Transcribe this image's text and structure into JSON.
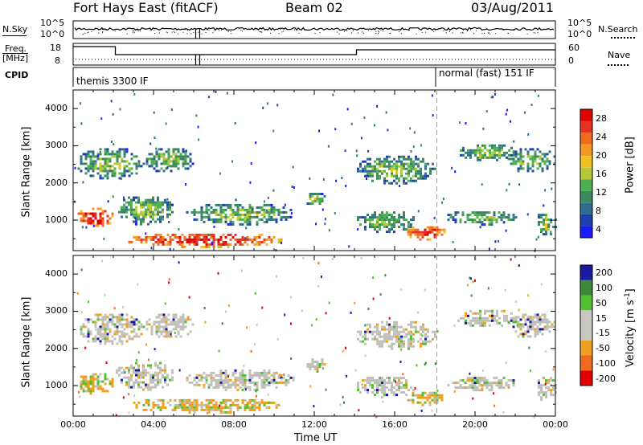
{
  "header": {
    "station": "Fort Hays East (fitACF)",
    "beam": "Beam 02",
    "date": "03/Aug/2011"
  },
  "top_panels": {
    "nsky_label": "N.Sky",
    "nsearch_label": "N.Search",
    "nsky_ticks": [
      "10^5",
      "10^0"
    ],
    "nsearch_ticks": [
      "10^5",
      "10^0"
    ],
    "freq_label_line1": "Freq.",
    "freq_label_line2": "[MHz]",
    "freq_ticks": [
      "18",
      "8"
    ],
    "nave_label": "Nave",
    "nave_ticks": [
      "60",
      "0"
    ],
    "cpid_label": "CPID",
    "cpid_1": "themis 3300 IF",
    "cpid_2": "normal (fast) 151 IF"
  },
  "chart_data": [
    {
      "type": "heatmap",
      "name": "power",
      "ylabel": "Slant Range [km]",
      "yticks": [
        "4000",
        "3000",
        "2000",
        "1000"
      ],
      "ylim": [
        180,
        4500
      ],
      "x_ticks": [
        "00:00",
        "04:00",
        "08:00",
        "12:00",
        "16:00",
        "20:00",
        "00:00"
      ],
      "xlim_hours": [
        0,
        24
      ],
      "colorbar": {
        "label": "Power [dB]",
        "ticks": [
          "28",
          "24",
          "20",
          "16",
          "12",
          "8",
          "4"
        ],
        "range": [
          0,
          30
        ]
      },
      "mode_change_hour": 18.1
    },
    {
      "type": "heatmap",
      "name": "velocity",
      "ylabel": "Slant Range [km]",
      "yticks": [
        "4000",
        "3000",
        "2000",
        "1000"
      ],
      "ylim": [
        180,
        4500
      ],
      "x_ticks": [
        "00:00",
        "04:00",
        "08:00",
        "12:00",
        "16:00",
        "20:00",
        "00:00"
      ],
      "xlim_hours": [
        0,
        24
      ],
      "xlabel": "Time UT",
      "colorbar": {
        "label": "Velocity [m s",
        "label_sup": "-1",
        "label_end": "]",
        "ticks": [
          "200",
          "100",
          "50",
          "15",
          "-15",
          "-50",
          "-100",
          "-200"
        ],
        "range": [
          -250,
          250
        ]
      },
      "mode_change_hour": 18.1
    }
  ],
  "colors": {
    "power_scale": [
      "#1a1aff",
      "#1f3fb0",
      "#2e6e8e",
      "#3a8a5a",
      "#4caf50",
      "#b5c83a",
      "#f0c020",
      "#f49a20",
      "#f06a20",
      "#e63020",
      "#e00000"
    ],
    "velocity_scale": [
      "#e00000",
      "#f06a20",
      "#f0a020",
      "#c8c8c0",
      "#c8c8c0",
      "#50c030",
      "#3a8a3a",
      "#1a1aa0"
    ],
    "ground_scatter": "#c0c0b8"
  }
}
